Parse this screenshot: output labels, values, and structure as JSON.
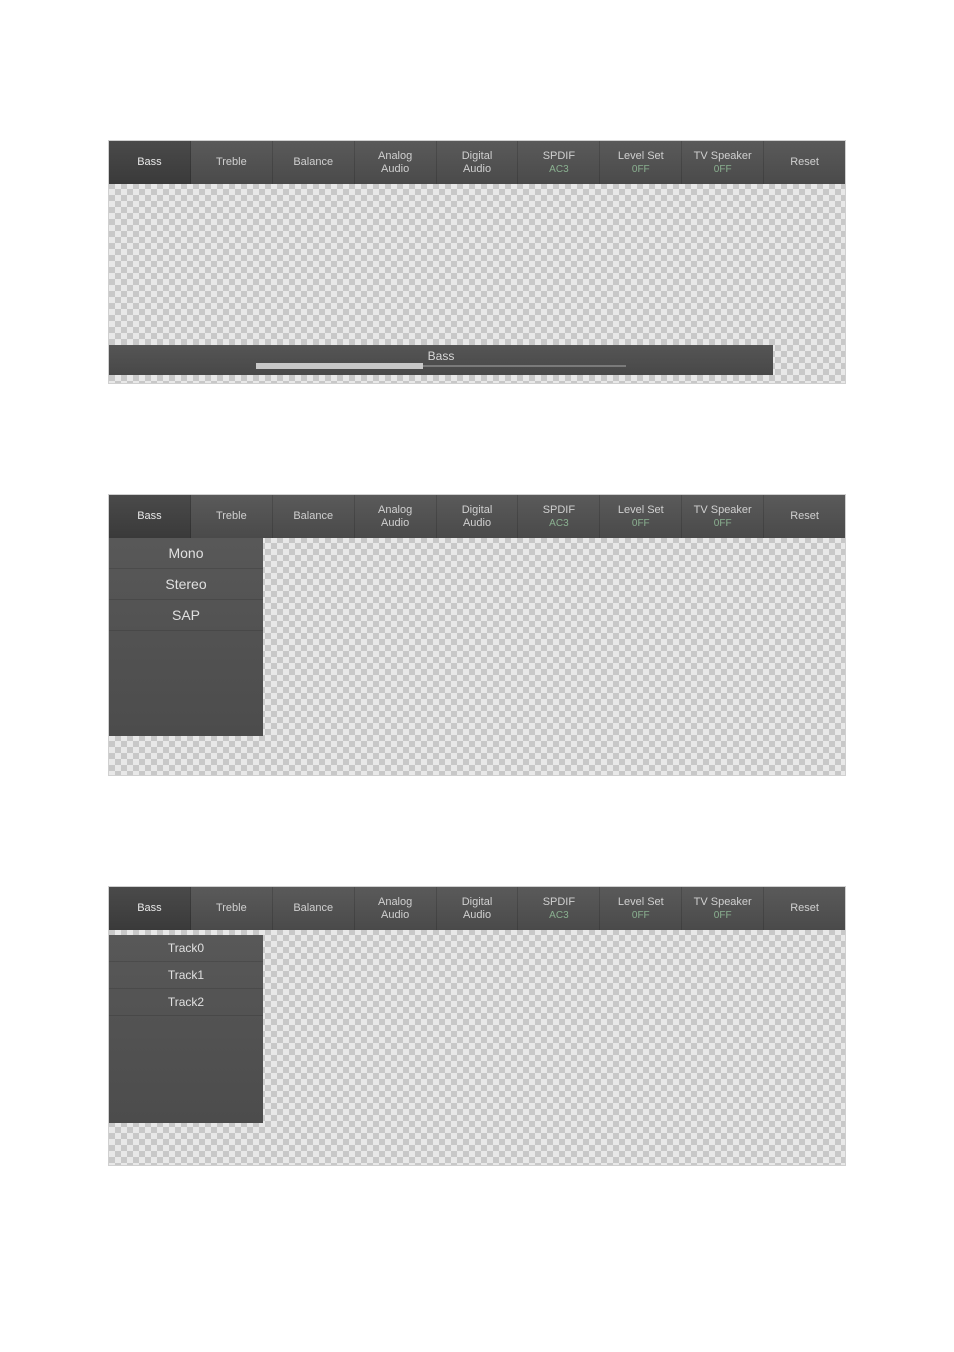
{
  "colors": {
    "tab_bg": "#4e4e4e",
    "tab_text": "#d0d0d0",
    "sub_text": "#8ab090",
    "dropdown_bg": "#525252",
    "dropdown_text": "#e0e0e0",
    "slider_track": "#7a7a7a",
    "slider_fill": "#c8c8c8",
    "checker_light": "#e8e8e8",
    "checker_dark": "#c8c8c8"
  },
  "tabs": [
    {
      "line1": "Bass"
    },
    {
      "line1": "Treble"
    },
    {
      "line1": "Balance"
    },
    {
      "line1": "Analog",
      "line2": "Audio"
    },
    {
      "line1": "Digital",
      "line2": "Audio"
    },
    {
      "line1": "SPDIF",
      "sub": "AC3"
    },
    {
      "line1": "Level Set",
      "sub": "0FF"
    },
    {
      "line1": "TV Speaker",
      "sub": "0FF"
    },
    {
      "line1": "Reset"
    }
  ],
  "panel1": {
    "slider": {
      "label": "Bass",
      "value_pct": 45
    }
  },
  "panel2": {
    "dropdown": {
      "items": [
        "Mono",
        "Stereo",
        "SAP"
      ]
    }
  },
  "panel3": {
    "dropdown": {
      "items": [
        "Track0",
        "Track1",
        "Track2"
      ]
    }
  }
}
